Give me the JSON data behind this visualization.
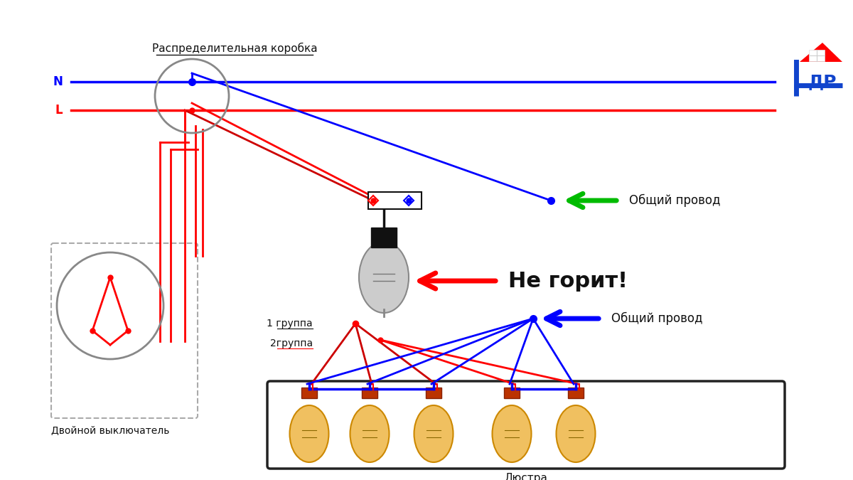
{
  "bg_color": "#ffffff",
  "blue": "#0000ff",
  "red": "#ff0000",
  "dark_red": "#cc0000",
  "green": "#00bb00",
  "dark": "#111111",
  "gray": "#888888",
  "label_N": "N",
  "label_L": "L",
  "label_box": "Распределительная коробка",
  "label_switch": "Двойной выключатель",
  "label_chandelier": "Люстра",
  "label_common1": "Общий провод",
  "label_common2": "Общий провод",
  "label_no_light": "Не горит!",
  "label_group1": "1 группа",
  "label_group2": "2группа"
}
